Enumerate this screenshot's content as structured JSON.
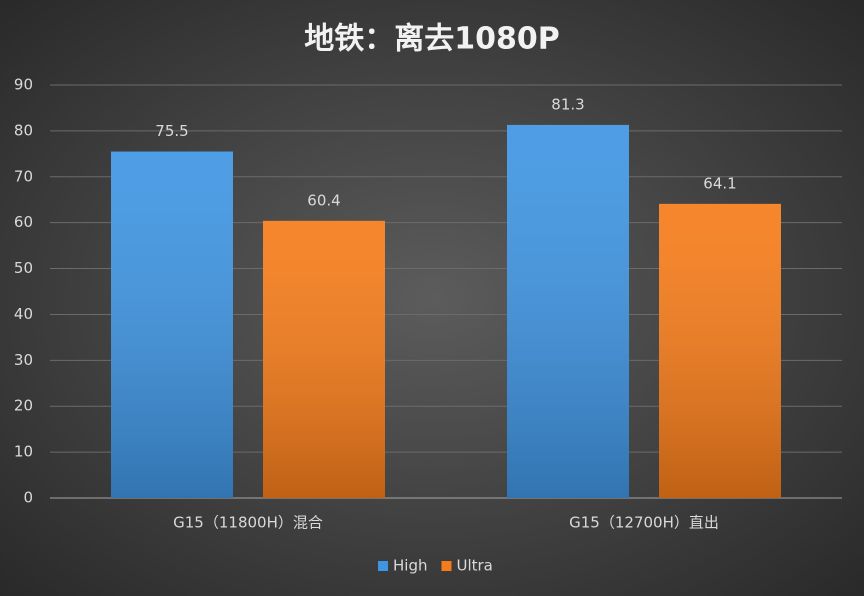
{
  "chart_data": {
    "type": "bar",
    "title": "地铁：离去1080P",
    "categories": [
      "G15（11800H）混合",
      "G15（12700H）直出"
    ],
    "series": [
      {
        "name": "High",
        "color": "#3f95e3",
        "values": [
          75.5,
          81.3
        ]
      },
      {
        "name": "Ultra",
        "color": "#f67c1a",
        "values": [
          60.4,
          64.1
        ]
      }
    ],
    "ylim": [
      0,
      90
    ],
    "yticks": [
      0,
      10,
      20,
      30,
      40,
      50,
      60,
      70,
      80,
      90
    ],
    "grid": true,
    "legend": "bottom"
  }
}
